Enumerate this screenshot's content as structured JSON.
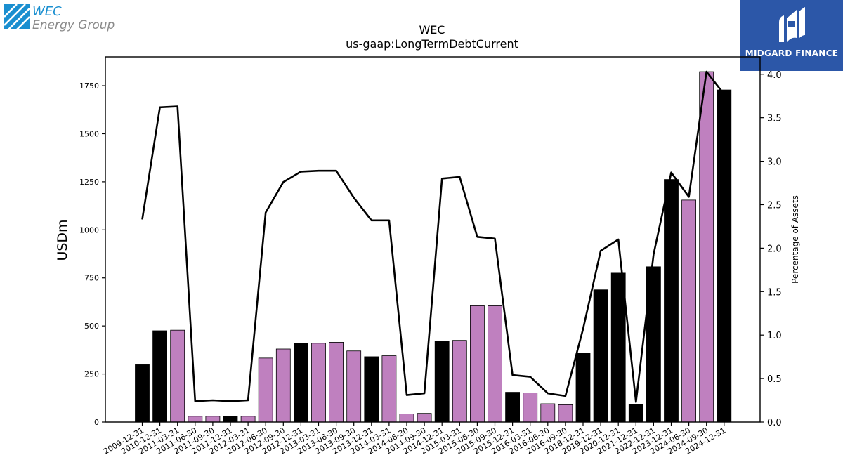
{
  "branding": {
    "company_line1": "WEC",
    "company_line2": "Energy Group",
    "publisher": "MIDGARD FINANCE",
    "accent_blue": "#1a8fd0",
    "publisher_bg": "#2c57a8"
  },
  "chart_data": {
    "type": "bar",
    "title": "WEC",
    "subtitle": "us-gaap:LongTermDebtCurrent",
    "ylabel": "USDm",
    "y2label": "Percentage of Assets",
    "ylim": [
      0,
      1900
    ],
    "y2lim": [
      0,
      4.2
    ],
    "yticks": [
      0,
      250,
      500,
      750,
      1000,
      1250,
      1500,
      1750
    ],
    "y2ticks": [
      "0.0",
      "0.5",
      "1.0",
      "1.5",
      "2.0",
      "2.5",
      "3.0",
      "3.5",
      "4.0"
    ],
    "categories": [
      "2009-12-31",
      "2010-12-31",
      "2011-03-31",
      "2011-06-30",
      "2011-09-30",
      "2011-12-31",
      "2012-03-31",
      "2012-06-30",
      "2012-09-30",
      "2012-12-31",
      "2013-03-31",
      "2013-06-30",
      "2013-09-30",
      "2013-12-31",
      "2014-03-31",
      "2014-06-30",
      "2014-09-30",
      "2014-12-31",
      "2015-03-31",
      "2015-06-30",
      "2015-09-30",
      "2015-12-31",
      "2016-03-31",
      "2016-06-30",
      "2016-09-30",
      "2018-12-31",
      "2019-12-31",
      "2020-12-31",
      "2021-12-31",
      "2022-12-31",
      "2023-12-31",
      "2024-06-30",
      "2024-09-30",
      "2024-12-31"
    ],
    "bar_colors": [
      "#000000",
      "#000000",
      "#bf80bf",
      "#bf80bf",
      "#bf80bf",
      "#000000",
      "#bf80bf",
      "#bf80bf",
      "#bf80bf",
      "#000000",
      "#bf80bf",
      "#bf80bf",
      "#bf80bf",
      "#000000",
      "#bf80bf",
      "#bf80bf",
      "#bf80bf",
      "#000000",
      "#bf80bf",
      "#bf80bf",
      "#bf80bf",
      "#000000",
      "#bf80bf",
      "#bf80bf",
      "#bf80bf",
      "#000000",
      "#000000",
      "#000000",
      "#000000",
      "#000000",
      "#000000",
      "#bf80bf",
      "#bf80bf",
      "#000000"
    ],
    "series": [
      {
        "values": [
          298,
          475,
          478,
          30,
          30,
          30,
          30,
          333,
          380,
          410,
          410,
          415,
          370,
          340,
          345,
          42,
          45,
          420,
          425,
          605,
          605,
          155,
          152,
          95,
          90,
          358,
          688,
          775,
          90,
          808,
          1262,
          1155,
          1823,
          1728
        ]
      },
      {
        "axis": "right",
        "type": "line",
        "values": [
          2.33,
          3.62,
          3.63,
          0.24,
          0.25,
          0.24,
          0.25,
          2.41,
          2.76,
          2.88,
          2.89,
          2.89,
          2.58,
          2.32,
          2.32,
          0.31,
          0.33,
          2.8,
          2.82,
          2.13,
          2.11,
          0.54,
          0.52,
          0.33,
          0.3,
          1.07,
          1.97,
          2.1,
          0.23,
          1.93,
          2.87,
          2.59,
          4.03,
          3.77
        ]
      }
    ],
    "grid": false
  }
}
